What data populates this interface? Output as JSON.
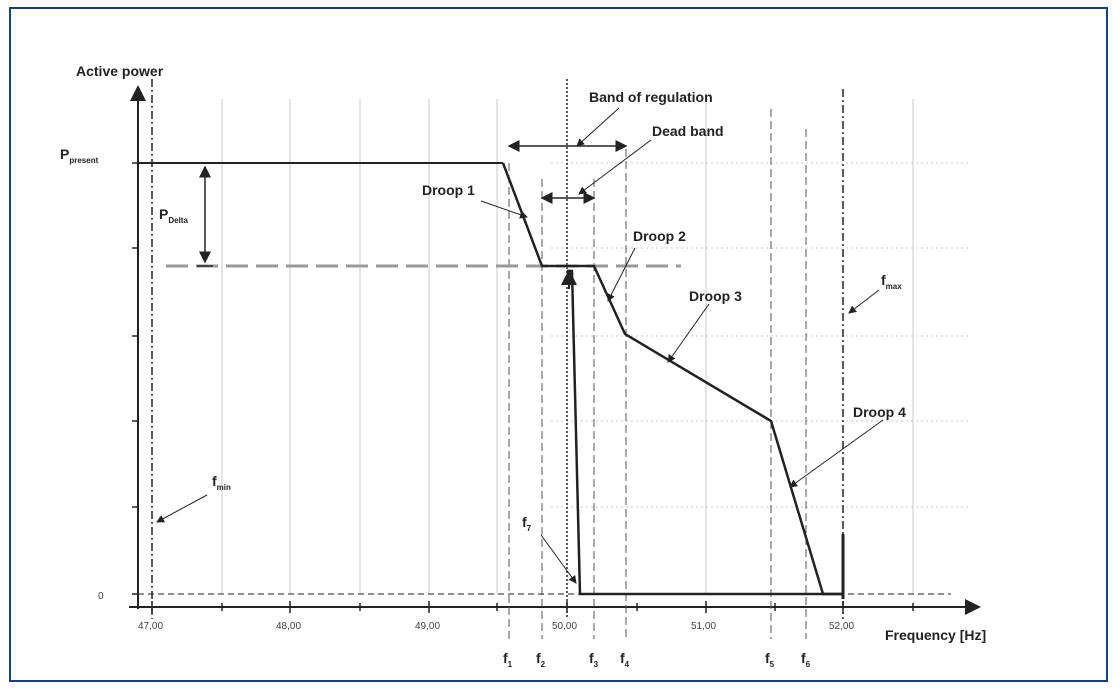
{
  "diagram": {
    "y_axis_label": "Active power",
    "x_axis_label": "Frequency [Hz]",
    "p_present_label": "P",
    "p_present_sub": "present",
    "p_delta_label": "P",
    "p_delta_sub": "Delta",
    "zero_label": "0",
    "x_ticks": [
      "47,00",
      "48,00",
      "49,00",
      "50,00",
      "51,00",
      "52,00"
    ],
    "band_of_regulation": "Band of regulation",
    "dead_band": "Dead band",
    "droops": [
      "Droop 1",
      "Droop 2",
      "Droop 3",
      "Droop 4"
    ],
    "f_min": {
      "main": "f",
      "sub": "min"
    },
    "f_max": {
      "main": "f",
      "sub": "max"
    },
    "f_labels": [
      {
        "main": "f",
        "sub": "1"
      },
      {
        "main": "f",
        "sub": "2"
      },
      {
        "main": "f",
        "sub": "3"
      },
      {
        "main": "f",
        "sub": "4"
      },
      {
        "main": "f",
        "sub": "5"
      },
      {
        "main": "f",
        "sub": "6"
      },
      {
        "main": "f",
        "sub": "7"
      }
    ],
    "colors": {
      "frame": "#1d3f73",
      "line": "#222222",
      "grid": "#bbbbbb",
      "dash": "#999999"
    }
  }
}
